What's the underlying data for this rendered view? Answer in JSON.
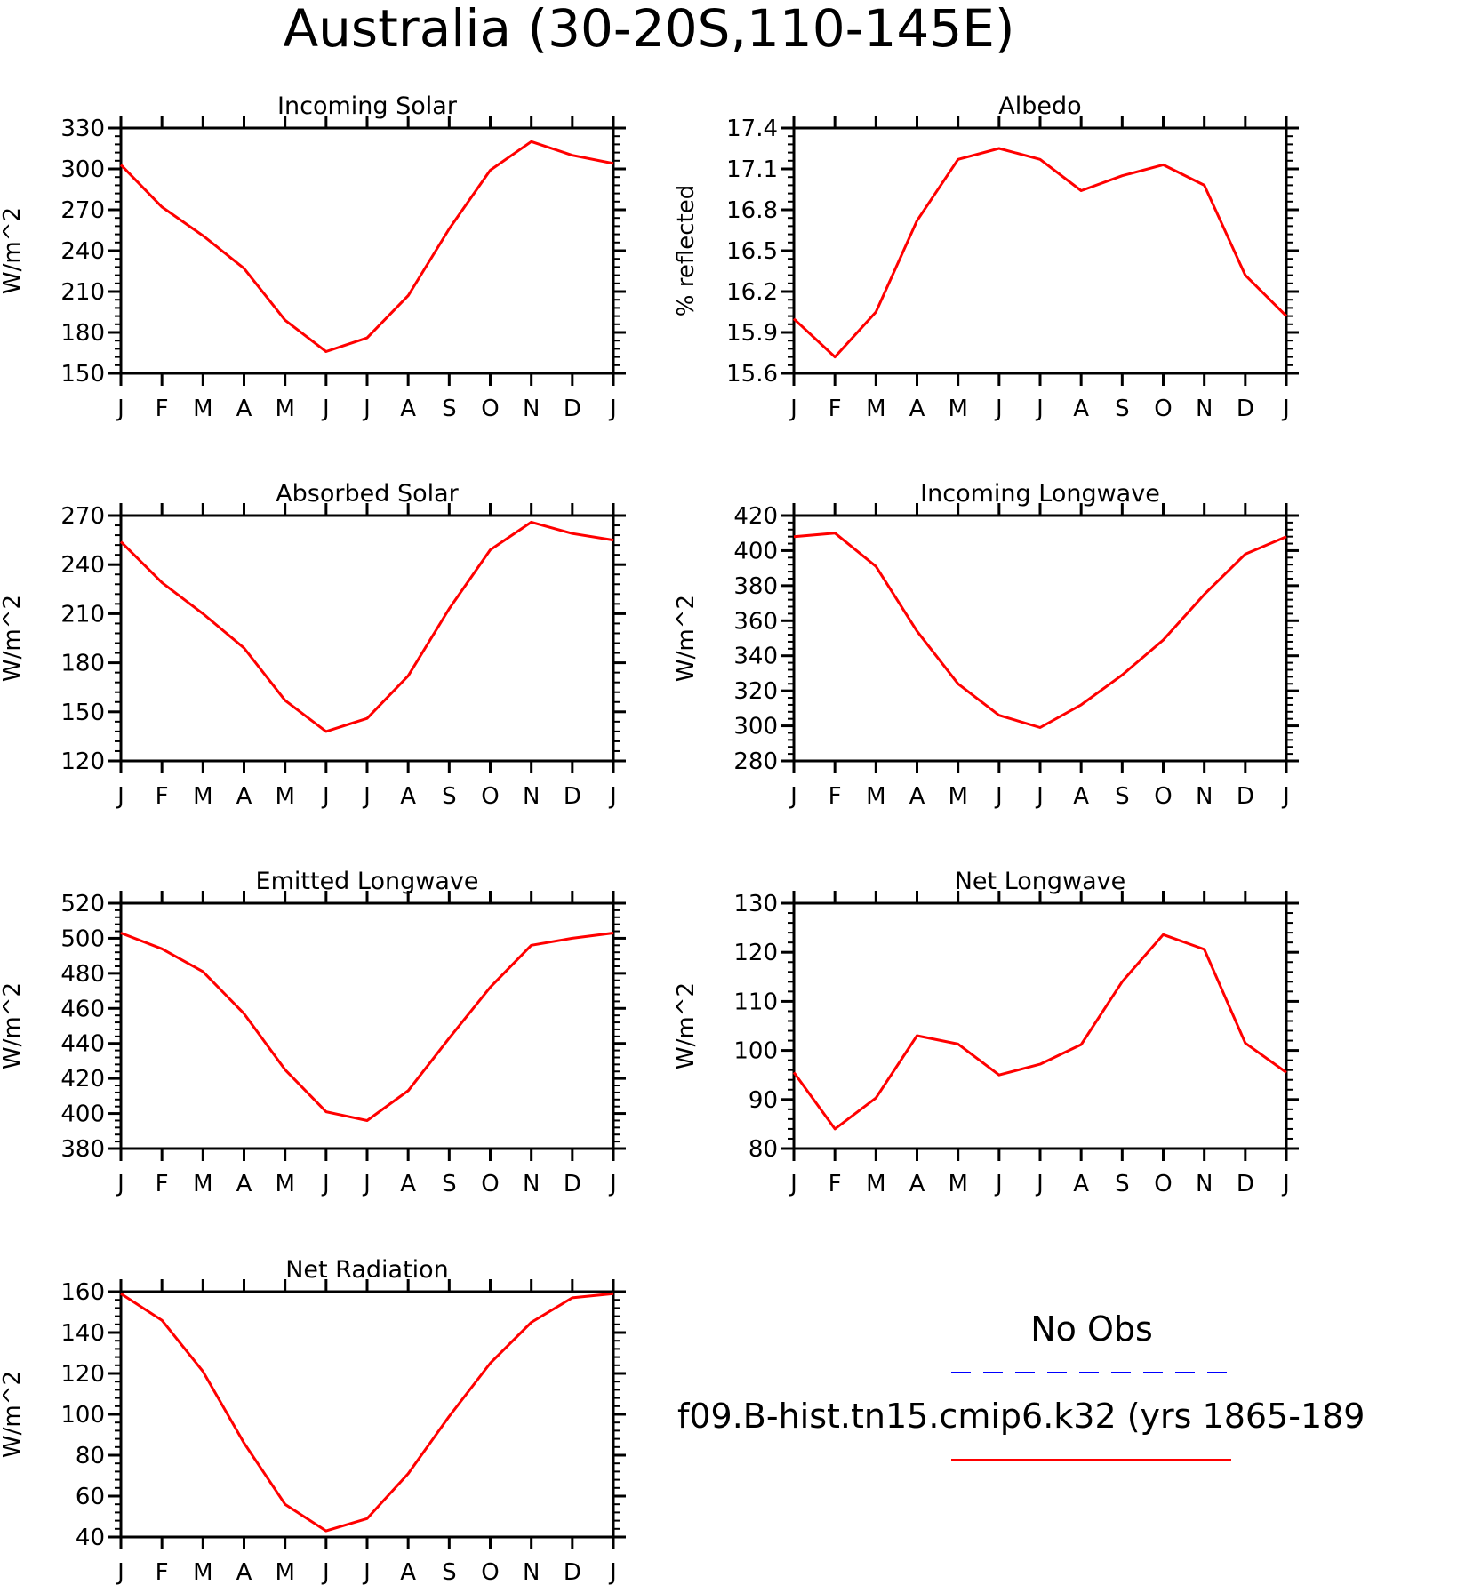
{
  "title": "Australia (30-20S,110-145E)",
  "legend": {
    "entries": [
      {
        "label": "No Obs",
        "color": "#0000ff",
        "style": "dashed"
      },
      {
        "label": "f09.B-hist.tn15.cmip6.k32 (yrs 1865-189",
        "color": "#ff0000",
        "style": "solid"
      }
    ]
  },
  "chart_data": [
    {
      "type": "line",
      "title": "Incoming Solar",
      "ylabel": "W/m^2",
      "xlabel": "",
      "categories": [
        "J",
        "F",
        "M",
        "A",
        "M",
        "J",
        "J",
        "A",
        "S",
        "O",
        "N",
        "D",
        "J"
      ],
      "ylim": [
        150,
        330
      ],
      "yticks": [
        "150",
        "180",
        "210",
        "240",
        "270",
        "300",
        "330"
      ],
      "series": [
        {
          "color": "#ff0000",
          "values": [
            303,
            272,
            251,
            227,
            189,
            166,
            176,
            207,
            256,
            299,
            320,
            310,
            304
          ]
        }
      ]
    },
    {
      "type": "line",
      "title": "Albedo",
      "ylabel": "% reflected",
      "xlabel": "",
      "categories": [
        "J",
        "F",
        "M",
        "A",
        "M",
        "J",
        "J",
        "A",
        "S",
        "O",
        "N",
        "D",
        "J"
      ],
      "ylim": [
        15.6,
        17.4
      ],
      "yticks": [
        "15.6",
        "15.9",
        "16.2",
        "16.5",
        "16.8",
        "17.1",
        "17.4"
      ],
      "series": [
        {
          "color": "#ff0000",
          "values": [
            16.0,
            15.72,
            16.05,
            16.72,
            17.17,
            17.25,
            17.17,
            16.94,
            17.05,
            17.13,
            16.98,
            16.32,
            16.02
          ]
        }
      ]
    },
    {
      "type": "line",
      "title": "Absorbed Solar",
      "ylabel": "W/m^2",
      "xlabel": "",
      "categories": [
        "J",
        "F",
        "M",
        "A",
        "M",
        "J",
        "J",
        "A",
        "S",
        "O",
        "N",
        "D",
        "J"
      ],
      "ylim": [
        120,
        270
      ],
      "yticks": [
        "120",
        "150",
        "180",
        "210",
        "240",
        "270"
      ],
      "series": [
        {
          "color": "#ff0000",
          "values": [
            254,
            229,
            210,
            189,
            157,
            138,
            146,
            172,
            213,
            249,
            266,
            259,
            255
          ]
        }
      ]
    },
    {
      "type": "line",
      "title": "Incoming Longwave",
      "ylabel": "W/m^2",
      "xlabel": "",
      "categories": [
        "J",
        "F",
        "M",
        "A",
        "M",
        "J",
        "J",
        "A",
        "S",
        "O",
        "N",
        "D",
        "J"
      ],
      "ylim": [
        280,
        420
      ],
      "yticks": [
        "280",
        "300",
        "320",
        "340",
        "360",
        "380",
        "400",
        "420"
      ],
      "series": [
        {
          "color": "#ff0000",
          "values": [
            408,
            410,
            391,
            354,
            324,
            306,
            299,
            312,
            329,
            349,
            375,
            398,
            408
          ]
        }
      ]
    },
    {
      "type": "line",
      "title": "Emitted Longwave",
      "ylabel": "W/m^2",
      "xlabel": "",
      "categories": [
        "J",
        "F",
        "M",
        "A",
        "M",
        "J",
        "J",
        "A",
        "S",
        "O",
        "N",
        "D",
        "J"
      ],
      "ylim": [
        380,
        520
      ],
      "yticks": [
        "380",
        "400",
        "420",
        "440",
        "460",
        "480",
        "500",
        "520"
      ],
      "series": [
        {
          "color": "#ff0000",
          "values": [
            503,
            494,
            481,
            457,
            425,
            401,
            396,
            413,
            443,
            472,
            496,
            500,
            503
          ]
        }
      ]
    },
    {
      "type": "line",
      "title": "Net Longwave",
      "ylabel": "W/m^2",
      "xlabel": "",
      "categories": [
        "J",
        "F",
        "M",
        "A",
        "M",
        "J",
        "J",
        "A",
        "S",
        "O",
        "N",
        "D",
        "J"
      ],
      "ylim": [
        80,
        130
      ],
      "yticks": [
        "80",
        "90",
        "100",
        "110",
        "120",
        "130"
      ],
      "series": [
        {
          "color": "#ff0000",
          "values": [
            95.5,
            84,
            90.3,
            103,
            101.3,
            95,
            97.2,
            101.2,
            114,
            123.6,
            120.6,
            101.5,
            95.5
          ]
        }
      ]
    },
    {
      "type": "line",
      "title": "Net Radiation",
      "ylabel": "W/m^2",
      "xlabel": "",
      "categories": [
        "J",
        "F",
        "M",
        "A",
        "M",
        "J",
        "J",
        "A",
        "S",
        "O",
        "N",
        "D",
        "J"
      ],
      "ylim": [
        40,
        160
      ],
      "yticks": [
        "40",
        "60",
        "80",
        "100",
        "120",
        "140",
        "160"
      ],
      "series": [
        {
          "color": "#ff0000",
          "values": [
            159,
            146,
            121,
            86,
            56,
            43,
            49,
            71,
            99,
            125,
            145,
            157,
            159
          ]
        }
      ]
    }
  ]
}
